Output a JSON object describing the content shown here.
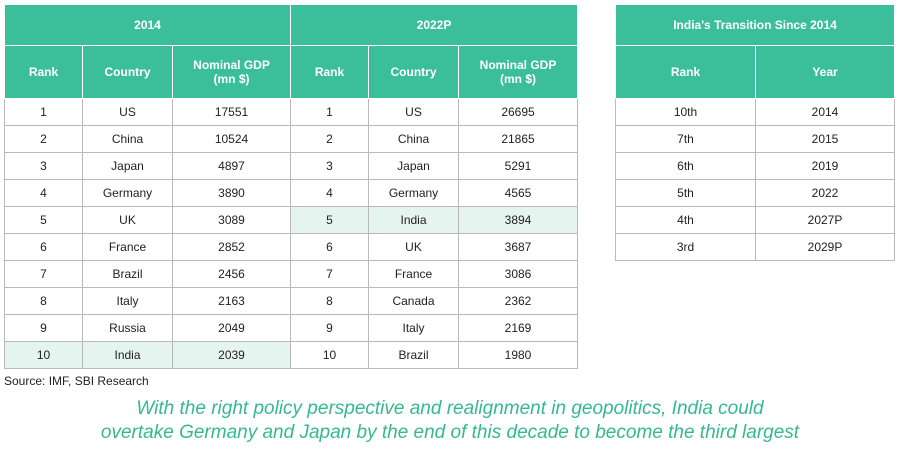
{
  "gdp_table": {
    "groups": [
      "2014",
      "2022P"
    ],
    "headers": [
      "Rank",
      "Country",
      "Nominal GDP\n(mn $)",
      "Rank",
      "Country",
      "Nominal GDP\n(mn $)"
    ],
    "rows": [
      [
        "1",
        "US",
        "17551",
        "1",
        "US",
        "26695"
      ],
      [
        "2",
        "China",
        "10524",
        "2",
        "China",
        "21865"
      ],
      [
        "3",
        "Japan",
        "4897",
        "3",
        "Japan",
        "5291"
      ],
      [
        "4",
        "Germany",
        "3890",
        "4",
        "Germany",
        "4565"
      ],
      [
        "5",
        "UK",
        "3089",
        "5",
        "India",
        "3894"
      ],
      [
        "6",
        "France",
        "2852",
        "6",
        "UK",
        "3687"
      ],
      [
        "7",
        "Brazil",
        "2456",
        "7",
        "France",
        "3086"
      ],
      [
        "8",
        "Italy",
        "2163",
        "8",
        "Canada",
        "2362"
      ],
      [
        "9",
        "Russia",
        "2049",
        "9",
        "Italy",
        "2169"
      ],
      [
        "10",
        "India",
        "2039",
        "10",
        "Brazil",
        "1980"
      ]
    ],
    "highlight_color": "#e6f4ef"
  },
  "india_table": {
    "title": "India's Transition Since 2014",
    "headers": [
      "Rank",
      "Year"
    ],
    "rows": [
      [
        "10th",
        "2014"
      ],
      [
        "7th",
        "2015"
      ],
      [
        "6th",
        "2019"
      ],
      [
        "5th",
        "2022"
      ],
      [
        "4th",
        "2027P"
      ],
      [
        "3rd",
        "2029P"
      ]
    ]
  },
  "source": "Source: IMF, SBI Research",
  "caption": {
    "line1": "With the right policy perspective and realignment in geopolitics, India could",
    "line2": "overtake Germany and Japan by the end of this decade to become the third largest"
  },
  "colors": {
    "header_bg": "#3bbf9b",
    "caption_text": "#35b98f"
  }
}
